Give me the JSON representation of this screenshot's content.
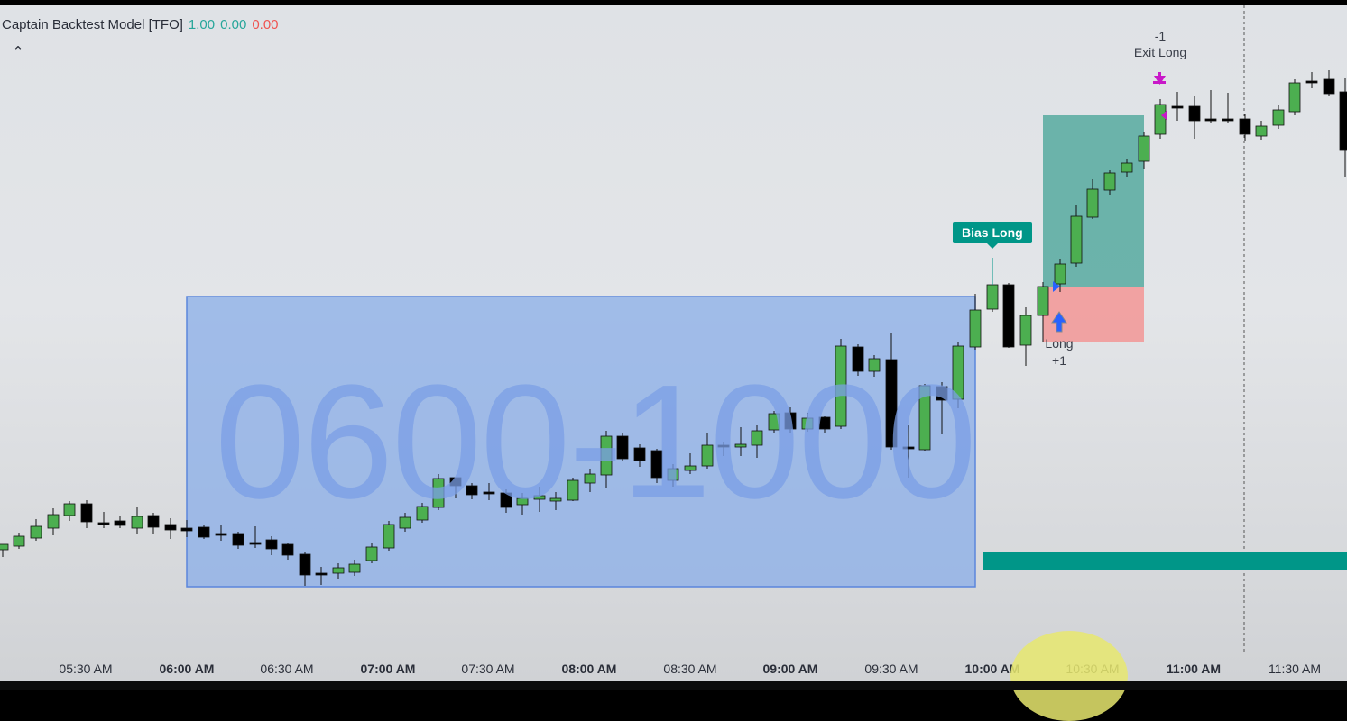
{
  "indicator": {
    "name": "Captain Backtest Model [TFO]",
    "value_1": "1.00",
    "value_2": "0.00",
    "value_3": "0.00"
  },
  "collapse_icon": "chevron-up-icon",
  "session": {
    "label": "0600-1000"
  },
  "annotations": {
    "bias": "Bias Long",
    "entry_label": "Long",
    "entry_qty": "+1",
    "exit_label": "Exit Long",
    "exit_qty": "-1"
  },
  "colors": {
    "bull": "#4caf50",
    "bear": "#000000",
    "session_box": "#8aaee8",
    "target_zone": "#4da69b",
    "stop_zone": "#f29a9a",
    "bias_label": "#009688",
    "exit_arrow": "#c818c8"
  },
  "time_axis": [
    {
      "label": "05:30 AM",
      "major": false
    },
    {
      "label": "06:00 AM",
      "major": true
    },
    {
      "label": "06:30 AM",
      "major": false
    },
    {
      "label": "07:00 AM",
      "major": true
    },
    {
      "label": "07:30 AM",
      "major": false
    },
    {
      "label": "08:00 AM",
      "major": true
    },
    {
      "label": "08:30 AM",
      "major": false
    },
    {
      "label": "09:00 AM",
      "major": true
    },
    {
      "label": "09:30 AM",
      "major": false
    },
    {
      "label": "10:00 AM",
      "major": true
    },
    {
      "label": "10:30 AM",
      "major": false
    },
    {
      "label": "11:00 AM",
      "major": true
    },
    {
      "label": "11:30 AM",
      "major": false
    }
  ]
}
